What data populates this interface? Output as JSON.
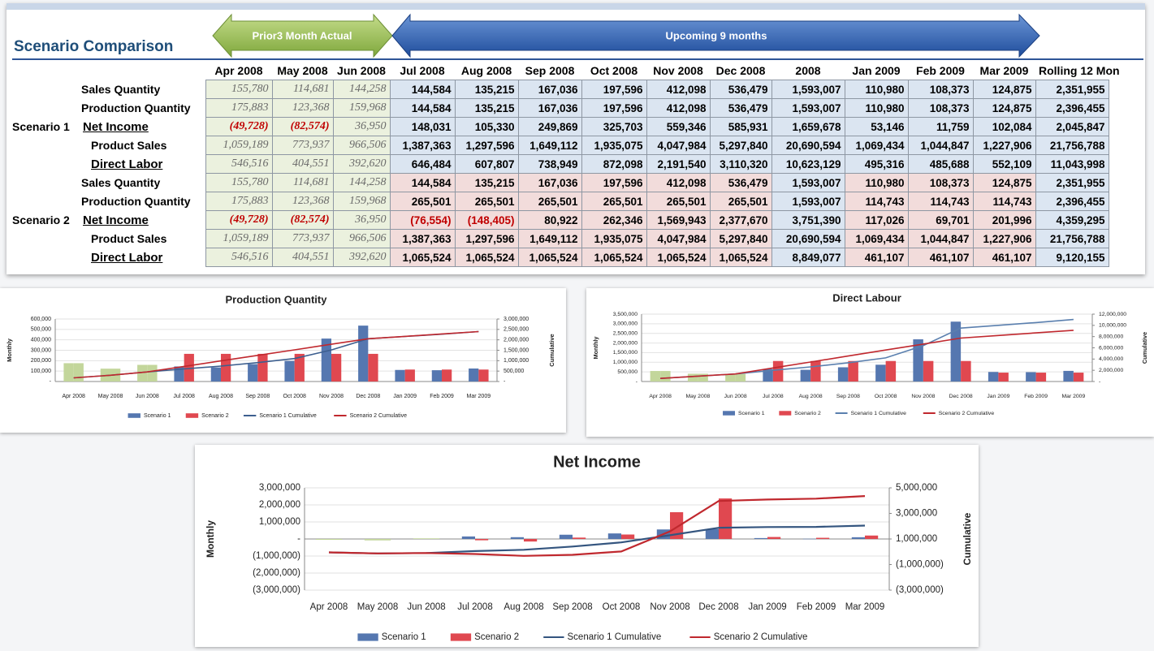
{
  "header": {
    "title": "Scenario Comparison",
    "actual_label": "Prior3 Month Actual",
    "forecast_label": "Upcoming 9 months"
  },
  "table": {
    "columns": [
      "Apr 2008",
      "May 2008",
      "Jun 2008",
      "Jul 2008",
      "Aug 2008",
      "Sep 2008",
      "Oct 2008",
      "Nov 2008",
      "Dec 2008",
      "2008",
      "Jan 2009",
      "Feb 2009",
      "Mar 2009",
      "Rolling 12 Mon"
    ],
    "groups": [
      {
        "name": "Scenario 1",
        "rows": [
          {
            "label": "Sales Quantity",
            "cells": [
              "155,780",
              "114,681",
              "144,258",
              "144,584",
              "135,215",
              "167,036",
              "197,596",
              "412,098",
              "536,479",
              "1,593,007",
              "110,980",
              "108,373",
              "124,875",
              "2,351,955"
            ]
          },
          {
            "label": "Production Quantity",
            "cells": [
              "175,883",
              "123,368",
              "159,968",
              "144,584",
              "135,215",
              "167,036",
              "197,596",
              "412,098",
              "536,479",
              "1,593,007",
              "110,980",
              "108,373",
              "124,875",
              "2,396,455"
            ]
          },
          {
            "label": "Net Income",
            "cells": [
              "(49,728)",
              "(82,574)",
              "36,950",
              "148,031",
              "105,330",
              "249,869",
              "325,703",
              "559,346",
              "585,931",
              "1,659,678",
              "53,146",
              "11,759",
              "102,084",
              "2,045,847"
            ]
          },
          {
            "label": "Product Sales",
            "cells": [
              "1,059,189",
              "773,937",
              "966,506",
              "1,387,363",
              "1,297,596",
              "1,649,112",
              "1,935,075",
              "4,047,984",
              "5,297,840",
              "20,690,594",
              "1,069,434",
              "1,044,847",
              "1,227,906",
              "21,756,788"
            ]
          },
          {
            "label": "Direct Labor",
            "cells": [
              "546,516",
              "404,551",
              "392,620",
              "646,484",
              "607,807",
              "738,949",
              "872,098",
              "2,191,540",
              "3,110,320",
              "10,623,129",
              "495,316",
              "485,688",
              "552,109",
              "11,043,998"
            ]
          }
        ]
      },
      {
        "name": "Scenario 2",
        "rows": [
          {
            "label": "Sales Quantity",
            "cells": [
              "155,780",
              "114,681",
              "144,258",
              "144,584",
              "135,215",
              "167,036",
              "197,596",
              "412,098",
              "536,479",
              "1,593,007",
              "110,980",
              "108,373",
              "124,875",
              "2,351,955"
            ]
          },
          {
            "label": "Production Quantity",
            "cells": [
              "175,883",
              "123,368",
              "159,968",
              "265,501",
              "265,501",
              "265,501",
              "265,501",
              "265,501",
              "265,501",
              "1,593,007",
              "114,743",
              "114,743",
              "114,743",
              "2,396,455"
            ]
          },
          {
            "label": "Net Income",
            "cells": [
              "(49,728)",
              "(82,574)",
              "36,950",
              "(76,554)",
              "(148,405)",
              "80,922",
              "262,346",
              "1,569,943",
              "2,377,670",
              "3,751,390",
              "117,026",
              "69,701",
              "201,996",
              "4,359,295"
            ]
          },
          {
            "label": "Product Sales",
            "cells": [
              "1,059,189",
              "773,937",
              "966,506",
              "1,387,363",
              "1,297,596",
              "1,649,112",
              "1,935,075",
              "4,047,984",
              "5,297,840",
              "20,690,594",
              "1,069,434",
              "1,044,847",
              "1,227,906",
              "21,756,788"
            ]
          },
          {
            "label": "Direct Labor",
            "cells": [
              "546,516",
              "404,551",
              "392,620",
              "1,065,524",
              "1,065,524",
              "1,065,524",
              "1,065,524",
              "1,065,524",
              "1,065,524",
              "8,849,077",
              "461,107",
              "461,107",
              "461,107",
              "9,120,155"
            ]
          }
        ]
      }
    ]
  },
  "chart_data": [
    {
      "type": "combo",
      "title": "Production Quantity",
      "ylabel": "Monthly",
      "y2label": "Cumulative",
      "grid": true,
      "legend": "bottom",
      "categories": [
        "Apr 2008",
        "May 2008",
        "Jun 2008",
        "Jul 2008",
        "Aug 2008",
        "Sep 2008",
        "Oct 2008",
        "Nov 2008",
        "Dec 2008",
        "Jan 2009",
        "Feb 2009",
        "Mar 2009"
      ],
      "series": [
        {
          "name": "Scenario 1",
          "type": "bar",
          "color": "#5577b0",
          "colors": [
            "#c3d69b",
            "#c3d69b",
            "#c3d69b",
            "#5577b0",
            "#5577b0",
            "#5577b0",
            "#5577b0",
            "#5577b0",
            "#5577b0",
            "#5577b0",
            "#5577b0",
            "#5577b0"
          ],
          "values": [
            175883,
            123368,
            159968,
            144584,
            135215,
            167036,
            197596,
            412098,
            536479,
            110980,
            108373,
            124875
          ]
        },
        {
          "name": "Scenario 2",
          "type": "bar",
          "color": "#e04850",
          "colors": [
            "#c3d69b",
            "#c3d69b",
            "#c3d69b",
            "#e04850",
            "#e04850",
            "#e04850",
            "#e04850",
            "#e04850",
            "#e04850",
            "#e04850",
            "#e04850",
            "#e04850"
          ],
          "values": [
            175883,
            123368,
            159968,
            265501,
            265501,
            265501,
            265501,
            265501,
            265501,
            114743,
            114743,
            114743
          ]
        },
        {
          "name": "Scenario 1 Cumulative",
          "type": "line",
          "axis": "y2",
          "color": "#3d5f8f",
          "values": [
            175883,
            299251,
            459219,
            603803,
            739018,
            906054,
            1103650,
            1515748,
            2052227,
            2163207,
            2271580,
            2396455
          ]
        },
        {
          "name": "Scenario 2 Cumulative",
          "type": "line",
          "axis": "y2",
          "color": "#c0282e",
          "values": [
            175883,
            299251,
            459219,
            724720,
            990221,
            1255722,
            1521223,
            1786724,
            2052225,
            2166968,
            2281711,
            2396454
          ]
        }
      ],
      "ylim": [
        0,
        600000
      ],
      "yticks": [
        {
          "value": 0,
          "label": "-"
        },
        {
          "value": 100000,
          "label": "100,000"
        },
        {
          "value": 200000,
          "label": "200,000"
        },
        {
          "value": 300000,
          "label": "300,000"
        },
        {
          "value": 400000,
          "label": "400,000"
        },
        {
          "value": 500000,
          "label": "500,000"
        },
        {
          "value": 600000,
          "label": "600,000"
        }
      ],
      "y2lim": [
        0,
        3000000
      ],
      "y2ticks": [
        {
          "value": 0,
          "label": "-"
        },
        {
          "value": 500000,
          "label": "500,000"
        },
        {
          "value": 1000000,
          "label": "1,000,000"
        },
        {
          "value": 1500000,
          "label": "1,500,000"
        },
        {
          "value": 2000000,
          "label": "2,000,000"
        },
        {
          "value": 2500000,
          "label": "2,500,000"
        },
        {
          "value": 3000000,
          "label": "3,000,000"
        }
      ]
    },
    {
      "type": "combo",
      "title": "Direct Labour",
      "ylabel": "Monthly",
      "y2label": "Cumulative",
      "grid": true,
      "legend": "bottom",
      "categories": [
        "Apr 2008",
        "May 2008",
        "Jun 2008",
        "Jul 2008",
        "Aug 2008",
        "Sep 2008",
        "Oct 2008",
        "Nov 2008",
        "Dec 2008",
        "Jan 2009",
        "Feb 2009",
        "Mar 2009"
      ],
      "series": [
        {
          "name": "Scenario 1",
          "type": "bar",
          "color": "#5577b0",
          "colors": [
            "#c3d69b",
            "#c3d69b",
            "#c3d69b",
            "#5577b0",
            "#5577b0",
            "#5577b0",
            "#5577b0",
            "#5577b0",
            "#5577b0",
            "#5577b0",
            "#5577b0",
            "#5577b0"
          ],
          "values": [
            546516,
            404551,
            392620,
            646484,
            607807,
            738949,
            872098,
            2191540,
            3110320,
            495316,
            485688,
            552109
          ]
        },
        {
          "name": "Scenario 2",
          "type": "bar",
          "color": "#e04850",
          "colors": [
            "#c3d69b",
            "#c3d69b",
            "#c3d69b",
            "#e04850",
            "#e04850",
            "#e04850",
            "#e04850",
            "#e04850",
            "#e04850",
            "#e04850",
            "#e04850",
            "#e04850"
          ],
          "values": [
            546516,
            404551,
            392620,
            1065524,
            1065524,
            1065524,
            1065524,
            1065524,
            1065524,
            461107,
            461107,
            461107
          ]
        },
        {
          "name": "Scenario 1 Cumulative",
          "type": "line",
          "axis": "y2",
          "color": "#5a7fae",
          "values": [
            546516,
            951067,
            1343687,
            1990171,
            2597978,
            3336927,
            4209025,
            6400565,
            9510885,
            10006201,
            10491889,
            11043998
          ]
        },
        {
          "name": "Scenario 2 Cumulative",
          "type": "line",
          "axis": "y2",
          "color": "#c0282e",
          "values": [
            546516,
            951067,
            1343687,
            2409211,
            3474735,
            4540259,
            5605783,
            6671307,
            7736831,
            8197938,
            8659045,
            9120152
          ]
        }
      ],
      "ylim": [
        0,
        3500000
      ],
      "yticks": [
        {
          "value": 0,
          "label": "-"
        },
        {
          "value": 500000,
          "label": "500,000"
        },
        {
          "value": 1000000,
          "label": "1,000,000"
        },
        {
          "value": 1500000,
          "label": "1,500,000"
        },
        {
          "value": 2000000,
          "label": "2,000,000"
        },
        {
          "value": 2500000,
          "label": "2,500,000"
        },
        {
          "value": 3000000,
          "label": "3,000,000"
        },
        {
          "value": 3500000,
          "label": "3,500,000"
        }
      ],
      "y2lim": [
        0,
        12000000
      ],
      "y2ticks": [
        {
          "value": 0,
          "label": "-"
        },
        {
          "value": 2000000,
          "label": "2,000,000"
        },
        {
          "value": 4000000,
          "label": "4,000,000"
        },
        {
          "value": 6000000,
          "label": "6,000,000"
        },
        {
          "value": 8000000,
          "label": "8,000,000"
        },
        {
          "value": 10000000,
          "label": "10,000,000"
        },
        {
          "value": 12000000,
          "label": "12,000,000"
        }
      ]
    },
    {
      "type": "combo",
      "title": "Net Income",
      "ylabel": "Monthly",
      "y2label": "Cumulative",
      "grid": true,
      "legend": "bottom",
      "categories": [
        "Apr 2008",
        "May 2008",
        "Jun 2008",
        "Jul 2008",
        "Aug 2008",
        "Sep 2008",
        "Oct 2008",
        "Nov 2008",
        "Dec 2008",
        "Jan 2009",
        "Feb 2009",
        "Mar 2009"
      ],
      "series": [
        {
          "name": "Scenario 1",
          "type": "bar",
          "color": "#5577b0",
          "colors": [
            "#c3d69b",
            "#c3d69b",
            "#c3d69b",
            "#5577b0",
            "#5577b0",
            "#5577b0",
            "#5577b0",
            "#5577b0",
            "#5577b0",
            "#5577b0",
            "#5577b0",
            "#5577b0"
          ],
          "values": [
            -49728,
            -82574,
            36950,
            148031,
            105330,
            249869,
            325703,
            559346,
            585931,
            53146,
            11759,
            102084
          ]
        },
        {
          "name": "Scenario 2",
          "type": "bar",
          "color": "#e04850",
          "colors": [
            "#c3d69b",
            "#c3d69b",
            "#c3d69b",
            "#e04850",
            "#e04850",
            "#e04850",
            "#e04850",
            "#e04850",
            "#e04850",
            "#e04850",
            "#e04850",
            "#e04850"
          ],
          "values": [
            -49728,
            -82574,
            36950,
            -76554,
            -148405,
            80922,
            262346,
            1569943,
            2377670,
            117026,
            69701,
            201996
          ]
        },
        {
          "name": "Scenario 1 Cumulative",
          "type": "line",
          "axis": "y2",
          "color": "#34557f",
          "values": [
            -49728,
            -132302,
            -95352,
            52679,
            158009,
            407878,
            733581,
            1292927,
            1878858,
            1932004,
            1943763,
            2045847
          ]
        },
        {
          "name": "Scenario 2 Cumulative",
          "type": "line",
          "axis": "y2",
          "color": "#c0282e",
          "values": [
            -49728,
            -132302,
            -95352,
            -171906,
            -320311,
            -239389,
            22957,
            1592900,
            3970570,
            4087596,
            4157297,
            4359293
          ]
        }
      ],
      "ylim": [
        -3000000,
        3000000
      ],
      "yticks": [
        {
          "value": -3000000,
          "label": "(3,000,000)"
        },
        {
          "value": -2000000,
          "label": "(2,000,000)"
        },
        {
          "value": -1000000,
          "label": "(1,000,000)"
        },
        {
          "value": 0,
          "label": "-"
        },
        {
          "value": 1000000,
          "label": "1,000,000"
        },
        {
          "value": 2000000,
          "label": "2,000,000"
        },
        {
          "value": 3000000,
          "label": "3,000,000"
        }
      ],
      "y2lim": [
        -3000000,
        5000000
      ],
      "y2ticks": [
        {
          "value": -3000000,
          "label": "(3,000,000)"
        },
        {
          "value": -1000000,
          "label": "(1,000,000)"
        },
        {
          "value": 1000000,
          "label": "1,000,000"
        },
        {
          "value": 3000000,
          "label": "3,000,000"
        },
        {
          "value": 5000000,
          "label": "5,000,000"
        }
      ]
    }
  ]
}
